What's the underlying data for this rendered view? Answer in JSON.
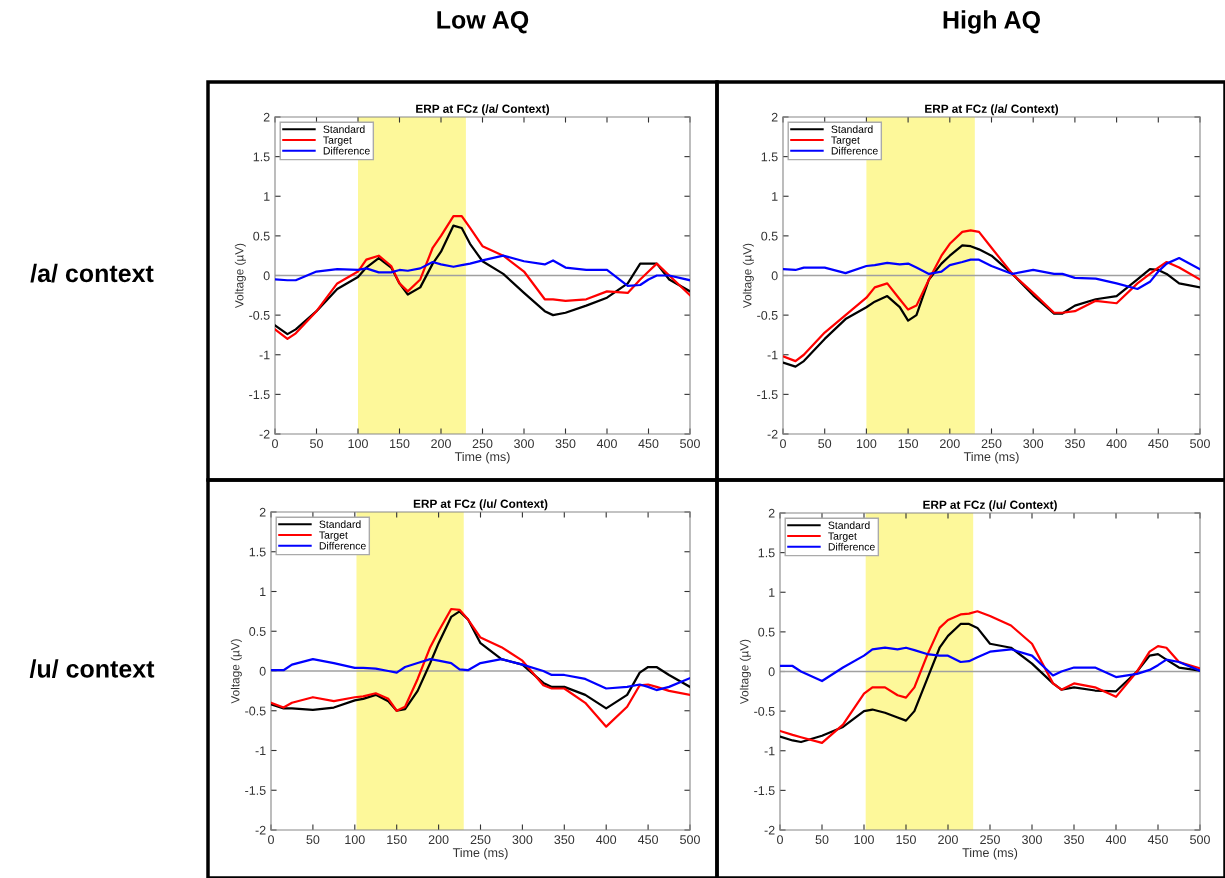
{
  "chart_data": [
    {
      "type": "line",
      "title": "ERP at FCz (/a/ Context)",
      "xlabel": "Time (ms)",
      "ylabel": "Voltage (µV)",
      "legend": "top left",
      "annotations": [
        "Low AQ",
        "/a/ context"
      ],
      "x": [
        0,
        15,
        25,
        50,
        75,
        100,
        110,
        125,
        140,
        150,
        160,
        175,
        190,
        200,
        215,
        225,
        235,
        250,
        275,
        300,
        325,
        335,
        350,
        375,
        400,
        425,
        440,
        450,
        460,
        475,
        500
      ],
      "xlim": [
        0,
        500
      ],
      "xticks": [
        0,
        50,
        100,
        150,
        200,
        250,
        300,
        350,
        400,
        450,
        500
      ],
      "ylim": [
        -2,
        2
      ],
      "yticks": [
        -2,
        -1.5,
        -1,
        -0.5,
        0,
        0.5,
        1,
        1.5,
        2
      ],
      "bands": [
        {
          "axis": "x",
          "from": 100,
          "to": 230,
          "color": "#fdf89a"
        }
      ],
      "ref_lines": [
        {
          "axis": "y",
          "value": 0,
          "color": "#a0a0a0"
        }
      ],
      "series": [
        {
          "name": "Standard",
          "color": "#000000",
          "values": [
            -0.63,
            -0.74,
            -0.68,
            -0.45,
            -0.17,
            -0.02,
            0.1,
            0.22,
            0.1,
            -0.1,
            -0.24,
            -0.15,
            0.15,
            0.3,
            0.63,
            0.6,
            0.4,
            0.18,
            0.02,
            -0.22,
            -0.45,
            -0.5,
            -0.47,
            -0.38,
            -0.28,
            -0.1,
            0.15,
            0.15,
            0.15,
            -0.05,
            -0.2
          ]
        },
        {
          "name": "Target",
          "color": "#ff0000",
          "values": [
            -0.68,
            -0.8,
            -0.73,
            -0.45,
            -0.1,
            0.05,
            0.2,
            0.25,
            0.12,
            -0.1,
            -0.2,
            -0.05,
            0.35,
            0.5,
            0.75,
            0.75,
            0.6,
            0.37,
            0.25,
            0.05,
            -0.3,
            -0.3,
            -0.32,
            -0.3,
            -0.2,
            -0.22,
            -0.05,
            0.05,
            0.15,
            0.0,
            -0.25
          ]
        },
        {
          "name": "Difference",
          "color": "#0000ff",
          "values": [
            -0.05,
            -0.06,
            -0.06,
            0.05,
            0.08,
            0.07,
            0.09,
            0.04,
            0.04,
            0.07,
            0.06,
            0.09,
            0.17,
            0.14,
            0.11,
            0.13,
            0.15,
            0.19,
            0.25,
            0.18,
            0.14,
            0.19,
            0.1,
            0.07,
            0.07,
            -0.13,
            -0.12,
            -0.05,
            0.0,
            0.0,
            -0.06
          ]
        }
      ]
    },
    {
      "type": "line",
      "title": "ERP at FCz (/a/ Context)",
      "xlabel": "Time (ms)",
      "ylabel": "Voltage (µV)",
      "legend": "top left",
      "annotations": [
        "High AQ"
      ],
      "x": [
        0,
        15,
        25,
        50,
        75,
        100,
        110,
        125,
        140,
        150,
        160,
        175,
        190,
        200,
        215,
        225,
        235,
        250,
        275,
        300,
        325,
        335,
        350,
        375,
        400,
        425,
        440,
        450,
        460,
        475,
        500
      ],
      "xlim": [
        0,
        500
      ],
      "xticks": [
        0,
        50,
        100,
        150,
        200,
        250,
        300,
        350,
        400,
        450,
        500
      ],
      "ylim": [
        -2,
        2
      ],
      "yticks": [
        -2,
        -1.5,
        -1,
        -0.5,
        0,
        0.5,
        1,
        1.5,
        2
      ],
      "bands": [
        {
          "axis": "x",
          "from": 100,
          "to": 230,
          "color": "#fdf89a"
        }
      ],
      "ref_lines": [
        {
          "axis": "y",
          "value": 0,
          "color": "#a0a0a0"
        }
      ],
      "series": [
        {
          "name": "Standard",
          "color": "#000000",
          "values": [
            -1.1,
            -1.15,
            -1.08,
            -0.8,
            -0.55,
            -0.4,
            -0.33,
            -0.26,
            -0.4,
            -0.57,
            -0.5,
            -0.05,
            0.15,
            0.25,
            0.38,
            0.37,
            0.33,
            0.25,
            0.02,
            -0.25,
            -0.48,
            -0.48,
            -0.38,
            -0.3,
            -0.26,
            -0.05,
            0.08,
            0.07,
            0.02,
            -0.1,
            -0.15
          ]
        },
        {
          "name": "Target",
          "color": "#ff0000",
          "values": [
            -1.02,
            -1.08,
            -1.0,
            -0.72,
            -0.5,
            -0.28,
            -0.15,
            -0.1,
            -0.3,
            -0.43,
            -0.38,
            -0.05,
            0.25,
            0.4,
            0.55,
            0.57,
            0.55,
            0.35,
            0.02,
            -0.22,
            -0.47,
            -0.47,
            -0.45,
            -0.32,
            -0.35,
            -0.1,
            0.02,
            0.1,
            0.17,
            0.1,
            -0.05
          ]
        },
        {
          "name": "Difference",
          "color": "#0000ff",
          "values": [
            0.08,
            0.07,
            0.1,
            0.1,
            0.03,
            0.12,
            0.13,
            0.16,
            0.14,
            0.15,
            0.1,
            0.02,
            0.05,
            0.13,
            0.17,
            0.2,
            0.2,
            0.12,
            0.02,
            0.07,
            0.02,
            0.02,
            -0.03,
            -0.04,
            -0.1,
            -0.17,
            -0.08,
            0.05,
            0.15,
            0.22,
            0.08
          ]
        }
      ]
    },
    {
      "type": "line",
      "title": "ERP at FCz (/u/ Context)",
      "xlabel": "Time (ms)",
      "ylabel": "Voltage (µV)",
      "legend": "top left",
      "annotations": [
        "/u/ context"
      ],
      "x": [
        0,
        15,
        25,
        50,
        75,
        100,
        110,
        125,
        140,
        150,
        160,
        175,
        190,
        200,
        215,
        225,
        235,
        250,
        275,
        300,
        325,
        335,
        350,
        375,
        400,
        425,
        440,
        450,
        460,
        475,
        500
      ],
      "xlim": [
        0,
        500
      ],
      "xticks": [
        0,
        50,
        100,
        150,
        200,
        250,
        300,
        350,
        400,
        450,
        500
      ],
      "ylim": [
        -2,
        2
      ],
      "yticks": [
        -2,
        -1.5,
        -1,
        -0.5,
        0,
        0.5,
        1,
        1.5,
        2
      ],
      "bands": [
        {
          "axis": "x",
          "from": 102,
          "to": 230,
          "color": "#fdf89a"
        }
      ],
      "ref_lines": [
        {
          "axis": "y",
          "value": 0,
          "color": "#a0a0a0"
        }
      ],
      "series": [
        {
          "name": "Standard",
          "color": "#000000",
          "values": [
            -0.42,
            -0.47,
            -0.47,
            -0.49,
            -0.46,
            -0.37,
            -0.35,
            -0.3,
            -0.38,
            -0.5,
            -0.48,
            -0.25,
            0.1,
            0.35,
            0.68,
            0.75,
            0.65,
            0.35,
            0.15,
            0.08,
            -0.15,
            -0.2,
            -0.2,
            -0.3,
            -0.47,
            -0.3,
            -0.02,
            0.05,
            0.05,
            -0.05,
            -0.2
          ]
        },
        {
          "name": "Target",
          "color": "#ff0000",
          "values": [
            -0.4,
            -0.46,
            -0.4,
            -0.33,
            -0.38,
            -0.33,
            -0.32,
            -0.28,
            -0.35,
            -0.5,
            -0.45,
            -0.1,
            0.3,
            0.5,
            0.78,
            0.77,
            0.65,
            0.42,
            0.3,
            0.13,
            -0.18,
            -0.22,
            -0.22,
            -0.4,
            -0.7,
            -0.45,
            -0.18,
            -0.17,
            -0.2,
            -0.25,
            -0.3
          ]
        },
        {
          "name": "Difference",
          "color": "#0000ff",
          "values": [
            0.01,
            0.01,
            0.08,
            0.15,
            0.1,
            0.04,
            0.04,
            0.03,
            0.0,
            -0.02,
            0.05,
            0.1,
            0.15,
            0.13,
            0.1,
            0.02,
            0.01,
            0.1,
            0.15,
            0.08,
            0.0,
            -0.05,
            -0.05,
            -0.1,
            -0.22,
            -0.2,
            -0.17,
            -0.2,
            -0.24,
            -0.2,
            -0.09
          ]
        }
      ]
    },
    {
      "type": "line",
      "title": "ERP at FCz (/u/ Context)",
      "xlabel": "Time (ms)",
      "ylabel": "Voltage (µV)",
      "legend": "top left",
      "x": [
        0,
        15,
        25,
        50,
        75,
        100,
        110,
        125,
        140,
        150,
        160,
        175,
        190,
        200,
        215,
        225,
        235,
        250,
        275,
        300,
        325,
        335,
        350,
        375,
        400,
        425,
        440,
        450,
        460,
        475,
        500
      ],
      "xlim": [
        0,
        500
      ],
      "xticks": [
        0,
        50,
        100,
        150,
        200,
        250,
        300,
        350,
        400,
        450,
        500
      ],
      "ylim": [
        -2,
        2
      ],
      "yticks": [
        -2,
        -1.5,
        -1,
        -0.5,
        0,
        0.5,
        1,
        1.5,
        2
      ],
      "bands": [
        {
          "axis": "x",
          "from": 102,
          "to": 230,
          "color": "#fdf89a"
        }
      ],
      "ref_lines": [
        {
          "axis": "y",
          "value": 0,
          "color": "#a0a0a0"
        }
      ],
      "series": [
        {
          "name": "Standard",
          "color": "#000000",
          "values": [
            -0.82,
            -0.87,
            -0.89,
            -0.81,
            -0.7,
            -0.5,
            -0.48,
            -0.52,
            -0.58,
            -0.62,
            -0.5,
            -0.1,
            0.3,
            0.45,
            0.6,
            0.6,
            0.55,
            0.35,
            0.3,
            0.1,
            -0.15,
            -0.23,
            -0.2,
            -0.24,
            -0.25,
            0.0,
            0.2,
            0.22,
            0.15,
            0.05,
            0.01
          ]
        },
        {
          "name": "Target",
          "color": "#ff0000",
          "values": [
            -0.75,
            -0.8,
            -0.83,
            -0.9,
            -0.67,
            -0.28,
            -0.2,
            -0.2,
            -0.3,
            -0.33,
            -0.2,
            0.2,
            0.55,
            0.65,
            0.72,
            0.73,
            0.76,
            0.7,
            0.58,
            0.35,
            -0.15,
            -0.23,
            -0.15,
            -0.2,
            -0.32,
            0.0,
            0.25,
            0.32,
            0.3,
            0.12,
            0.04
          ]
        },
        {
          "name": "Difference",
          "color": "#0000ff",
          "values": [
            0.07,
            0.07,
            0.0,
            -0.12,
            0.05,
            0.2,
            0.28,
            0.3,
            0.28,
            0.3,
            0.27,
            0.22,
            0.2,
            0.2,
            0.12,
            0.13,
            0.18,
            0.25,
            0.28,
            0.2,
            -0.05,
            0.0,
            0.05,
            0.05,
            -0.07,
            -0.03,
            0.02,
            0.08,
            0.15,
            0.12,
            0.01
          ]
        }
      ]
    }
  ]
}
